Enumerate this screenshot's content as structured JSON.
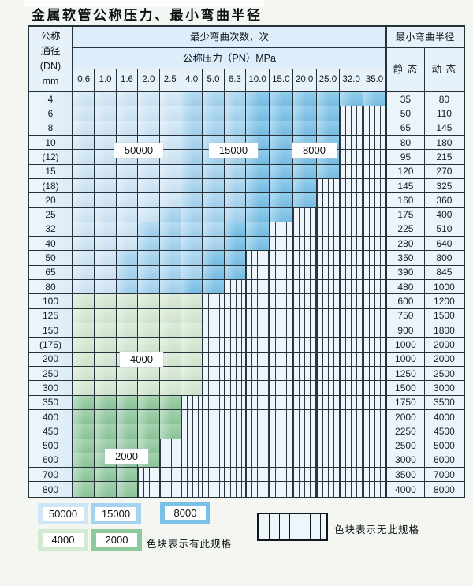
{
  "page_title": "金属软管公称压力、最小弯曲半径",
  "table": {
    "dn_header_lines": [
      "公称",
      "通径",
      "(DN)",
      "mm"
    ],
    "bend_cycles_header": "最少弯曲次数，次",
    "pressure_header": "公称压力（PN）MPa",
    "radius_header": "最小弯曲半径",
    "static_label": "静 态",
    "dynamic_label": "动 态",
    "pressure_columns": [
      "0.6",
      "1.0",
      "1.6",
      "2.0",
      "2.5",
      "4.0",
      "5.0",
      "6.3",
      "10.0",
      "15.0",
      "20.0",
      "25.0",
      "32.0",
      "35.0"
    ],
    "rows": [
      {
        "dn": "4",
        "bands": {
          "50000": [
            1,
            5
          ],
          "15000": [
            6,
            8
          ],
          "8000": [
            9,
            14
          ]
        },
        "static": "35",
        "dynamic": "80"
      },
      {
        "dn": "6",
        "bands": {
          "50000": [
            1,
            5
          ],
          "15000": [
            6,
            8
          ],
          "8000": [
            9,
            12
          ]
        },
        "static": "50",
        "dynamic": "110"
      },
      {
        "dn": "8",
        "bands": {
          "50000": [
            1,
            5
          ],
          "15000": [
            6,
            8
          ],
          "8000": [
            9,
            12
          ]
        },
        "static": "65",
        "dynamic": "145"
      },
      {
        "dn": "10",
        "bands": {
          "50000": [
            1,
            5
          ],
          "15000": [
            6,
            8
          ],
          "8000": [
            9,
            12
          ]
        },
        "static": "80",
        "dynamic": "180"
      },
      {
        "dn": "(12)",
        "bands": {
          "50000": [
            1,
            5
          ],
          "15000": [
            6,
            8
          ],
          "8000": [
            9,
            12
          ]
        },
        "static": "95",
        "dynamic": "215"
      },
      {
        "dn": "15",
        "bands": {
          "50000": [
            1,
            5
          ],
          "15000": [
            6,
            8
          ],
          "8000": [
            9,
            12
          ]
        },
        "static": "120",
        "dynamic": "270"
      },
      {
        "dn": "(18)",
        "bands": {
          "50000": [
            1,
            5
          ],
          "15000": [
            6,
            8
          ],
          "8000": [
            9,
            11
          ]
        },
        "static": "145",
        "dynamic": "325"
      },
      {
        "dn": "20",
        "bands": {
          "50000": [
            1,
            5
          ],
          "15000": [
            6,
            8
          ],
          "8000": [
            9,
            11
          ]
        },
        "static": "160",
        "dynamic": "360"
      },
      {
        "dn": "25",
        "bands": {
          "50000": [
            1,
            4
          ],
          "15000": [
            5,
            8
          ],
          "8000": [
            9,
            10
          ]
        },
        "static": "175",
        "dynamic": "400"
      },
      {
        "dn": "32",
        "bands": {
          "50000": [
            1,
            3
          ],
          "15000": [
            4,
            7
          ],
          "8000": [
            8,
            9
          ]
        },
        "static": "225",
        "dynamic": "510"
      },
      {
        "dn": "40",
        "bands": {
          "50000": [
            1,
            3
          ],
          "15000": [
            4,
            7
          ],
          "8000": [
            8,
            9
          ]
        },
        "static": "280",
        "dynamic": "640"
      },
      {
        "dn": "50",
        "bands": {
          "50000": [
            1,
            2
          ],
          "15000": [
            3,
            6
          ],
          "8000": [
            7,
            8
          ]
        },
        "static": "350",
        "dynamic": "800"
      },
      {
        "dn": "65",
        "bands": {
          "50000": [
            1,
            2
          ],
          "15000": [
            3,
            6
          ],
          "8000": [
            7,
            8
          ]
        },
        "static": "390",
        "dynamic": "845"
      },
      {
        "dn": "80",
        "bands": {
          "50000": [
            1,
            2
          ],
          "15000": [
            3,
            5
          ],
          "8000": [
            6,
            7
          ]
        },
        "static": "480",
        "dynamic": "1000"
      },
      {
        "dn": "100",
        "bands": {
          "4000": [
            1,
            6
          ]
        },
        "static": "600",
        "dynamic": "1200"
      },
      {
        "dn": "125",
        "bands": {
          "4000": [
            1,
            6
          ]
        },
        "static": "750",
        "dynamic": "1500"
      },
      {
        "dn": "150",
        "bands": {
          "4000": [
            1,
            6
          ]
        },
        "static": "900",
        "dynamic": "1800"
      },
      {
        "dn": "(175)",
        "bands": {
          "4000": [
            1,
            6
          ]
        },
        "static": "1000",
        "dynamic": "2000"
      },
      {
        "dn": "200",
        "bands": {
          "4000": [
            1,
            6
          ]
        },
        "static": "1000",
        "dynamic": "2000"
      },
      {
        "dn": "250",
        "bands": {
          "4000": [
            1,
            6
          ]
        },
        "static": "1250",
        "dynamic": "2500"
      },
      {
        "dn": "300",
        "bands": {
          "4000": [
            1,
            6
          ]
        },
        "static": "1500",
        "dynamic": "3000"
      },
      {
        "dn": "350",
        "bands": {
          "2000": [
            1,
            5
          ]
        },
        "static": "1750",
        "dynamic": "3500"
      },
      {
        "dn": "400",
        "bands": {
          "2000": [
            1,
            5
          ]
        },
        "static": "2000",
        "dynamic": "4000"
      },
      {
        "dn": "450",
        "bands": {
          "2000": [
            1,
            5
          ]
        },
        "static": "2250",
        "dynamic": "4500"
      },
      {
        "dn": "500",
        "bands": {
          "2000": [
            1,
            4
          ]
        },
        "static": "2500",
        "dynamic": "5000"
      },
      {
        "dn": "600",
        "bands": {
          "2000": [
            1,
            4
          ]
        },
        "static": "3000",
        "dynamic": "6000"
      },
      {
        "dn": "700",
        "bands": {
          "2000": [
            1,
            3
          ]
        },
        "static": "3500",
        "dynamic": "7000"
      },
      {
        "dn": "800",
        "bands": {
          "2000": [
            1,
            3
          ]
        },
        "static": "4000",
        "dynamic": "8000"
      }
    ]
  },
  "overlay_labels": [
    "50000",
    "15000",
    "8000",
    "4000",
    "2000"
  ],
  "legend": {
    "swatches": [
      {
        "label": "50000",
        "tone": "50000"
      },
      {
        "label": "15000",
        "tone": "15000"
      },
      {
        "label": "8000",
        "tone": "8000"
      },
      {
        "label": "4000",
        "tone": "4000"
      },
      {
        "label": "2000",
        "tone": "2000"
      }
    ],
    "has_spec_text": "色块表示有此规格",
    "no_spec_text": "色块表示无此规格"
  },
  "colors": {
    "blue_50000": "#cfe6f7",
    "blue_15000": "#a4d3f0",
    "blue_8000": "#79c1e8",
    "green_4000": "#d5e8d2",
    "green_2000": "#8fc89c",
    "hatch_bg": "#eef5fb",
    "hatch_line": "#2c3a42",
    "grid_line": "#26323a",
    "header_bg": "#ddedf9",
    "label_cell_bg": "#e7f1fa"
  }
}
